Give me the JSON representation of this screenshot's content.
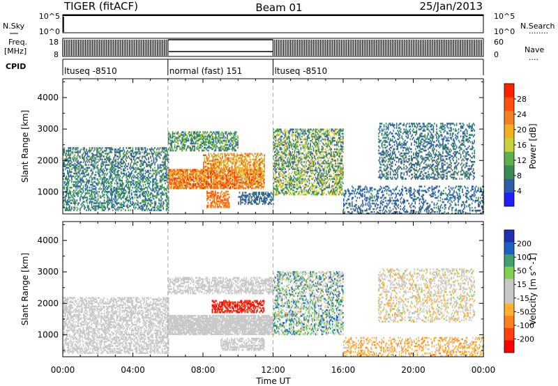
{
  "header": {
    "title": "TIGER (fitACF)",
    "beam": "Beam 01",
    "date": "25/Jan/2013"
  },
  "sky_panel": {
    "left_label": "N.Sky",
    "left_ticks": [
      "10^5",
      "10^0"
    ],
    "right_ticks": [
      "10^5",
      "10^0"
    ],
    "right_label": "N.Search",
    "right_dots": "........"
  },
  "freq_panel": {
    "left_label_line1": "Freq.",
    "left_label_line2": "[MHz]",
    "left_ticks": [
      "18",
      "8"
    ],
    "right_ticks": [
      "60",
      "0"
    ],
    "right_label": "Nave",
    "right_dots": "...."
  },
  "cpid_panel": {
    "label": "CPID",
    "segments": [
      {
        "text": "ltuseq -8510",
        "start_hour": 0,
        "end_hour": 6
      },
      {
        "text": "normal (fast) 151",
        "start_hour": 6,
        "end_hour": 12
      },
      {
        "text": "ltuseq -8510",
        "start_hour": 12,
        "end_hour": 24
      }
    ]
  },
  "colors": {
    "power_scale": [
      "#2020ff",
      "#2d5fa8",
      "#3a8a5a",
      "#5fb04a",
      "#c8d040",
      "#f0b020",
      "#f08020",
      "#ff5010",
      "#ff2000"
    ],
    "velocity_scale": [
      "#2030b0",
      "#2060c0",
      "#40a070",
      "#80d050",
      "#c8c8c8",
      "#c8c8c8",
      "#ffb030",
      "#ff8020",
      "#ff4010",
      "#ff0000"
    ]
  },
  "chart_data": [
    {
      "type": "heatmap",
      "name": "power",
      "ylabel": "Slant Range [km]",
      "y_ticks": [
        "1000",
        "2000",
        "3000",
        "4000"
      ],
      "ylim": [
        300,
        4600
      ],
      "x_range_hours": [
        0,
        24
      ],
      "colorbar_label": "Power [dB]",
      "colorbar_ticks": [
        "4",
        "8",
        "12",
        "16",
        "20",
        "24",
        "28"
      ],
      "colorbar_range": [
        0,
        32
      ],
      "echo_regions": [
        {
          "t": [
            0,
            6
          ],
          "range": [
            400,
            2400
          ],
          "value_range": [
            4,
            12
          ],
          "density": 0.45
        },
        {
          "t": [
            6,
            10
          ],
          "range": [
            2300,
            2900
          ],
          "value_range": [
            4,
            16
          ],
          "density": 0.55
        },
        {
          "t": [
            6,
            11.5
          ],
          "range": [
            1100,
            1700
          ],
          "value_range": [
            16,
            30
          ],
          "density": 0.8
        },
        {
          "t": [
            8,
            11.5
          ],
          "range": [
            1700,
            2200
          ],
          "value_range": [
            14,
            28
          ],
          "density": 0.55
        },
        {
          "t": [
            8.2,
            9.5
          ],
          "range": [
            500,
            1000
          ],
          "value_range": [
            20,
            28
          ],
          "density": 0.55
        },
        {
          "t": [
            10,
            12
          ],
          "range": [
            600,
            1000
          ],
          "value_range": [
            4,
            8
          ],
          "density": 0.5
        },
        {
          "t": [
            12,
            16
          ],
          "range": [
            900,
            3000
          ],
          "value_range": [
            4,
            20
          ],
          "density": 0.5
        },
        {
          "t": [
            16,
            24
          ],
          "range": [
            300,
            1200
          ],
          "value_range": [
            4,
            8
          ],
          "density": 0.3
        },
        {
          "t": [
            18,
            23.5
          ],
          "range": [
            1400,
            3200
          ],
          "value_range": [
            4,
            10
          ],
          "density": 0.35
        }
      ]
    },
    {
      "type": "heatmap",
      "name": "velocity",
      "ylabel": "Slant Range [km]",
      "y_ticks": [
        "1000",
        "2000",
        "3000",
        "4000"
      ],
      "ylim": [
        300,
        4600
      ],
      "x_range_hours": [
        0,
        24
      ],
      "xlabel": "Time UT",
      "x_ticks": [
        "00:00",
        "04:00",
        "08:00",
        "12:00",
        "16:00",
        "20:00",
        "00:00"
      ],
      "colorbar_label": "Velocity [m s^-1]",
      "colorbar_ticks": [
        "200",
        "100",
        "50",
        "15",
        "-15",
        "-50",
        "-100",
        "-200"
      ],
      "colorbar_range": [
        -250,
        250
      ],
      "echo_regions": [
        {
          "t": [
            0,
            6
          ],
          "range": [
            400,
            2200
          ],
          "value_range": [
            -20,
            20
          ],
          "density": 0.5
        },
        {
          "t": [
            6,
            12
          ],
          "range": [
            2300,
            2800
          ],
          "value_range": [
            -10,
            10
          ],
          "density": 0.5
        },
        {
          "t": [
            6,
            12
          ],
          "range": [
            1000,
            1600
          ],
          "value_range": [
            -10,
            10
          ],
          "density": 0.85
        },
        {
          "t": [
            8.5,
            11.5
          ],
          "range": [
            1700,
            2100
          ],
          "value_range": [
            -250,
            -150
          ],
          "density": 0.6
        },
        {
          "t": [
            9,
            11.5
          ],
          "range": [
            500,
            900
          ],
          "value_range": [
            -10,
            10
          ],
          "density": 0.6
        },
        {
          "t": [
            12,
            16
          ],
          "range": [
            1000,
            3000
          ],
          "value_range": [
            -60,
            200
          ],
          "density": 0.45
        },
        {
          "t": [
            16,
            24
          ],
          "range": [
            300,
            900
          ],
          "value_range": [
            -120,
            -30
          ],
          "density": 0.3
        },
        {
          "t": [
            18,
            23.5
          ],
          "range": [
            1400,
            3100
          ],
          "value_range": [
            -100,
            60
          ],
          "density": 0.3
        }
      ]
    }
  ]
}
